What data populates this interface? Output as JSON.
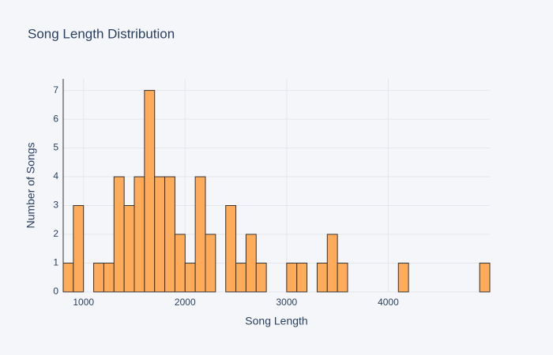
{
  "chart_data": {
    "type": "histogram",
    "title": "Song Length Distribution",
    "x_label": "Song Length",
    "y_label": "Number of Songs",
    "bins": [
      800,
      900,
      1000,
      1100,
      1200,
      1300,
      1400,
      1500,
      1600,
      1700,
      1800,
      1900,
      2000,
      2100,
      2200,
      2300,
      2400,
      2500,
      2600,
      2700,
      2800,
      2900,
      3000,
      3100,
      3200,
      3300,
      3400,
      3500,
      3600,
      3700,
      3800,
      3900,
      4000,
      4100,
      4200,
      4300,
      4400,
      4500,
      4600,
      4700,
      4800,
      4900,
      5000
    ],
    "values": [
      1,
      3,
      0,
      1,
      1,
      4,
      3,
      4,
      7,
      4,
      4,
      2,
      1,
      4,
      2,
      0,
      3,
      1,
      2,
      1,
      0,
      0,
      1,
      1,
      0,
      1,
      2,
      1,
      0,
      0,
      0,
      0,
      0,
      1,
      0,
      0,
      0,
      0,
      0,
      0,
      0,
      1
    ],
    "color": "#ffab5a",
    "edge_color": "#333333",
    "xlim": [
      800,
      5000
    ],
    "xticks": [
      1000,
      2000,
      3000,
      4000
    ],
    "ylim": [
      0,
      7.4
    ],
    "yticks": [
      0,
      1,
      2,
      3,
      4,
      5,
      6,
      7
    ],
    "grid": true
  }
}
